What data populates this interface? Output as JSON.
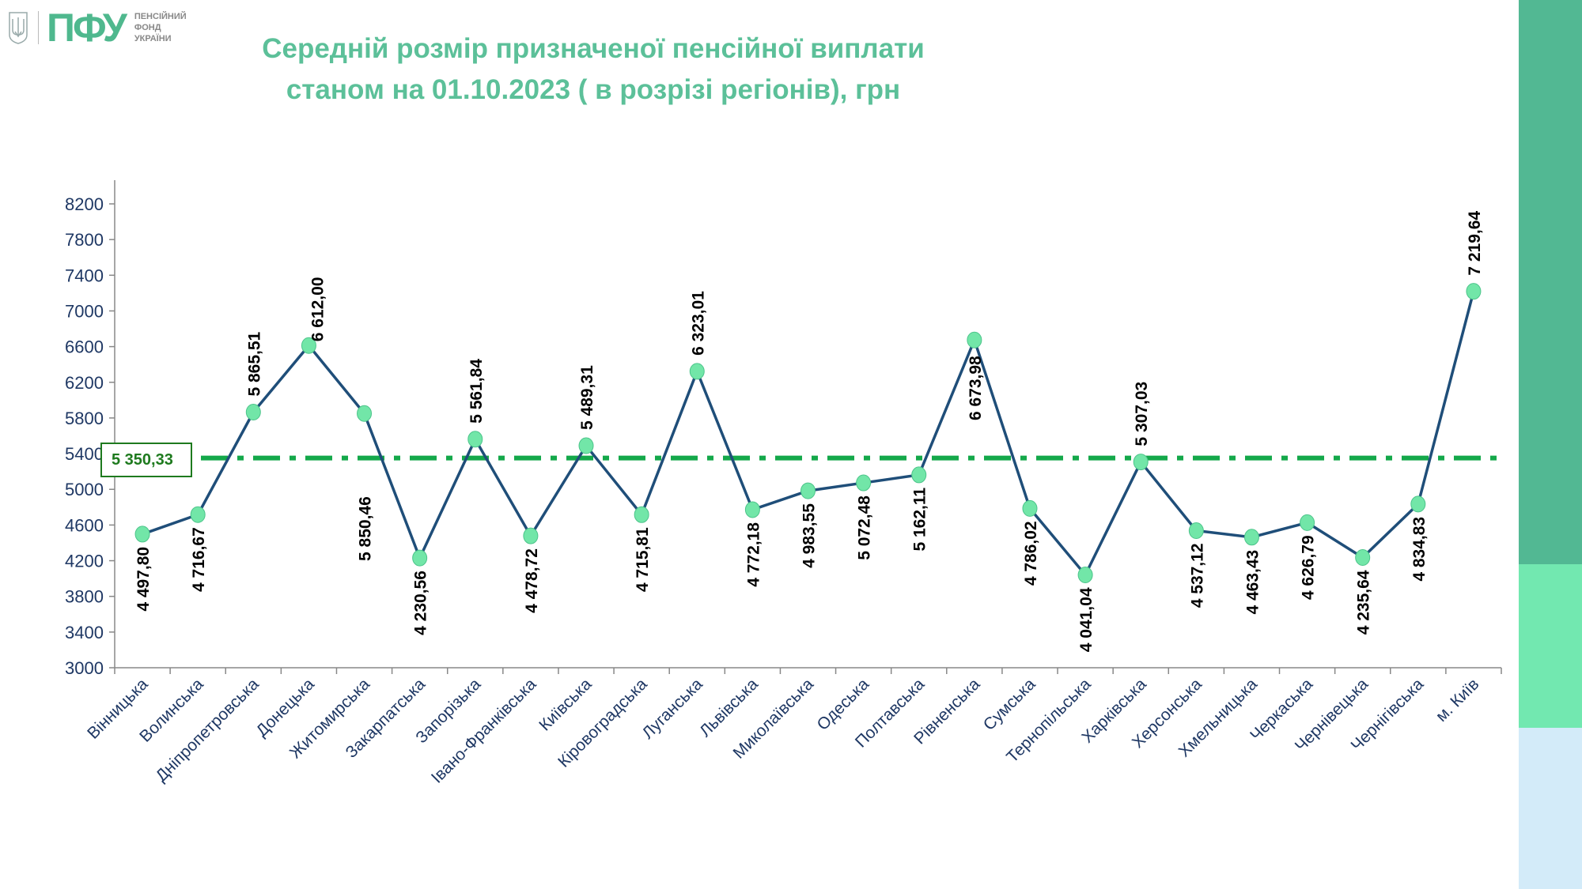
{
  "logo": {
    "abbr": "ПФУ",
    "line1": "ПЕНСІЙНИЙ",
    "line2": "ФОНД",
    "line3": "УКРАЇНИ"
  },
  "title_line1": "Середній розмір призначеної пенсійної виплати",
  "title_line2": "станом на 01.10.2023 ( в розрізі регіонів), грн",
  "colors": {
    "line": "#1f4e79",
    "marker": "#72e6a8",
    "average": "#14a84a",
    "title": "#5cc099",
    "sidebar": [
      "#52b893",
      "#72e8b0",
      "#d3ebf9"
    ]
  },
  "chart_data": {
    "type": "line",
    "title": "Середній розмір призначеної пенсійної виплати станом на 01.10.2023 ( в розрізі регіонів), грн",
    "categories": [
      "Вінницька",
      "Волинська",
      "Дніпропетровська",
      "Донецька",
      "Житомирська",
      "Закарпатська",
      "Запорізька",
      "Івано-Франківська",
      "Київська",
      "Кіровоградська",
      "Луганська",
      "Львівська",
      "Миколаївська",
      "Одеська",
      "Полтавська",
      "Рівненська",
      "Сумська",
      "Тернопільська",
      "Харківська",
      "Херсонська",
      "Хмельницька",
      "Черкаська",
      "Чернівецька",
      "Чернігівська",
      "м. Київ"
    ],
    "values": [
      4497.8,
      4716.67,
      5865.51,
      6612.0,
      5850.46,
      4230.56,
      5561.84,
      4478.72,
      5489.31,
      4715.81,
      6323.01,
      4772.18,
      4983.55,
      5072.48,
      5162.11,
      6673.98,
      4786.02,
      4041.04,
      5307.03,
      4537.12,
      4463.43,
      4626.79,
      4235.64,
      4834.83,
      7219.64
    ],
    "data_labels": [
      "4 497,80",
      "4 716,67",
      "5 865,51",
      "6 612,00",
      "5 850,46",
      "4 230,56",
      "5 561,84",
      "4 478,72",
      "5 489,31",
      "4 715,81",
      "6 323,01",
      "4 772,18",
      "4 983,55",
      "5 072,48",
      "5 162,11",
      "6 673,98",
      "4 786,02",
      "4 041,04",
      "5 307,03",
      "4 537,12",
      "4 463,43",
      "4 626,79",
      "4 235,64",
      "4 834,83",
      "7 219,64"
    ],
    "average": {
      "value": 5350.33,
      "label": "5 350,33"
    },
    "ylim": [
      3000,
      8200
    ],
    "yticks": [
      3000,
      3400,
      3800,
      4200,
      4600,
      5000,
      5400,
      5800,
      6200,
      6600,
      7000,
      7400,
      7800,
      8200
    ],
    "xlabel": "",
    "ylabel": "",
    "grid": false,
    "legend": "none"
  }
}
